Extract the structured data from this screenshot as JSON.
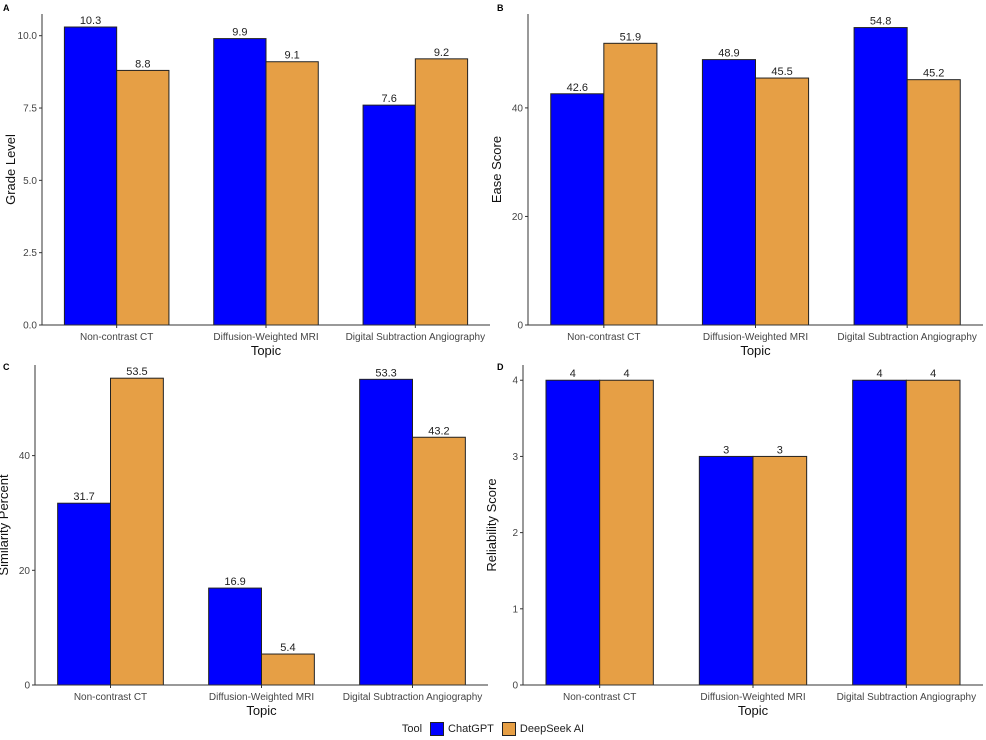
{
  "colors": {
    "ChatGPT": "#0000ff",
    "DeepSeek AI": "#e69f45"
  },
  "legend": {
    "title": "Tool",
    "items": [
      "ChatGPT",
      "DeepSeek AI"
    ]
  },
  "chart_data": [
    {
      "type": "bar",
      "panel_label": "A",
      "categories": [
        "Non-contrast CT",
        "Diffusion-Weighted MRI",
        "Digital Subtraction Angiography"
      ],
      "series": [
        {
          "name": "ChatGPT",
          "values": [
            10.3,
            9.9,
            7.6
          ]
        },
        {
          "name": "DeepSeek AI",
          "values": [
            8.8,
            9.1,
            9.2
          ]
        }
      ],
      "data_labels": [
        [
          "10.3",
          "9.9",
          "7.6"
        ],
        [
          "8.8",
          "9.1",
          "9.2"
        ]
      ],
      "xlabel": "Topic",
      "ylabel": "Grade Level",
      "ylim": [
        0,
        10.75
      ],
      "yticks": [
        0,
        2.5,
        5,
        7.5,
        10
      ],
      "ytick_labels": [
        "0.0",
        "2.5",
        "5.0",
        "7.5",
        "10.0"
      ],
      "grid": false
    },
    {
      "type": "bar",
      "panel_label": "B",
      "categories": [
        "Non-contrast CT",
        "Diffusion-Weighted MRI",
        "Digital Subtraction Angiography"
      ],
      "series": [
        {
          "name": "ChatGPT",
          "values": [
            42.6,
            48.9,
            54.8
          ]
        },
        {
          "name": "DeepSeek AI",
          "values": [
            51.9,
            45.5,
            45.2
          ]
        }
      ],
      "data_labels": [
        [
          "42.6",
          "48.9",
          "54.8"
        ],
        [
          "51.9",
          "45.5",
          "45.2"
        ]
      ],
      "xlabel": "Topic",
      "ylabel": "Ease Score",
      "ylim": [
        0,
        57.3
      ],
      "yticks": [
        0,
        20,
        40
      ],
      "ytick_labels": [
        "0",
        "20",
        "40"
      ],
      "grid": false
    },
    {
      "type": "bar",
      "panel_label": "C",
      "categories": [
        "Non-contrast CT",
        "Diffusion-Weighted MRI",
        "Digital Subtraction Angiography"
      ],
      "series": [
        {
          "name": "ChatGPT",
          "values": [
            31.7,
            16.9,
            53.3
          ]
        },
        {
          "name": "DeepSeek AI",
          "values": [
            53.5,
            5.4,
            43.2
          ]
        }
      ],
      "data_labels": [
        [
          "31.7",
          "16.9",
          "53.3"
        ],
        [
          "53.5",
          "5.4",
          "43.2"
        ]
      ],
      "xlabel": "Topic",
      "ylabel": "Similarity Percent",
      "ylim": [
        0,
        55.8
      ],
      "yticks": [
        0,
        20,
        40
      ],
      "ytick_labels": [
        "0",
        "20",
        "40"
      ],
      "grid": false
    },
    {
      "type": "bar",
      "panel_label": "D",
      "categories": [
        "Non-contrast CT",
        "Diffusion-Weighted MRI",
        "Digital Subtraction Angiography"
      ],
      "series": [
        {
          "name": "ChatGPT",
          "values": [
            4,
            3,
            4
          ]
        },
        {
          "name": "DeepSeek AI",
          "values": [
            4,
            3,
            4
          ]
        }
      ],
      "data_labels": [
        [
          "4",
          "3",
          "4"
        ],
        [
          "4",
          "3",
          "4"
        ]
      ],
      "xlabel": "Topic",
      "ylabel": "Reliability Score",
      "ylim": [
        0,
        4.2
      ],
      "yticks": [
        0,
        1,
        2,
        3,
        4
      ],
      "ytick_labels": [
        "0",
        "1",
        "2",
        "3",
        "4"
      ],
      "grid": false
    }
  ]
}
